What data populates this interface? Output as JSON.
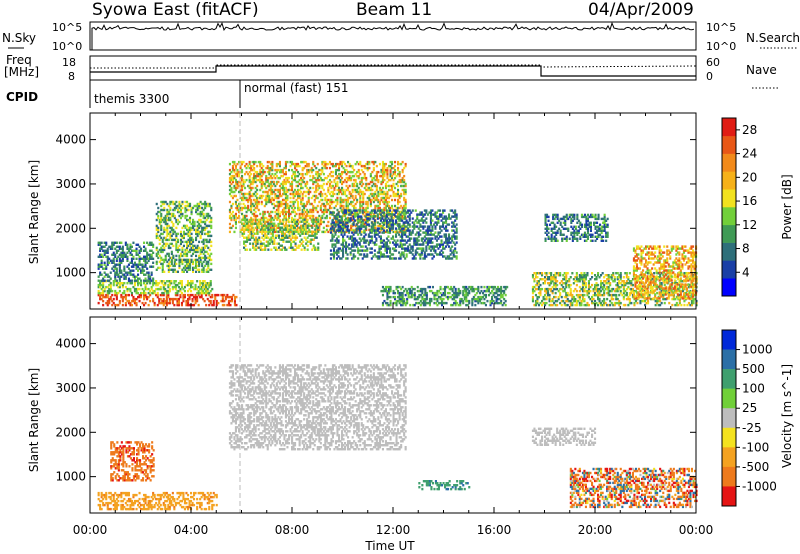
{
  "header": {
    "station": "Syowa East (fitACF)",
    "beam": "Beam 11",
    "date": "04/Apr/2009"
  },
  "colors": {
    "power_scale": [
      "#0000ff",
      "#1a3fa6",
      "#2e6f7a",
      "#3f9a55",
      "#72cf3a",
      "#f2e21f",
      "#f6b119",
      "#f28a1a",
      "#e85716",
      "#e01c14"
    ],
    "velocity_scale": [
      "#0028d9",
      "#2b6fa6",
      "#3f9f6e",
      "#70cf38",
      "#bdbdbd",
      "#f4e21f",
      "#f4a220",
      "#ee7a1c",
      "#e51414"
    ],
    "gate_dash": "#bbbbbb"
  },
  "panels": {
    "nsky": {
      "label": "N.Sky",
      "ticks": [
        "10^5",
        "10^0"
      ],
      "right_label": "N.Search",
      "right_ticks": [
        "10^5",
        "10^0"
      ]
    },
    "freq": {
      "label_top": "Freq",
      "label_bottom": "[MHz]",
      "ticks": [
        "18",
        "8"
      ],
      "right_label": "Nave",
      "right_ticks": [
        "60",
        "0"
      ]
    },
    "cpid": {
      "label": "CPID",
      "modes": [
        "themis 3300",
        "normal (fast) 151"
      ]
    }
  },
  "chart_data": [
    {
      "type": "heatmap",
      "title": "Power",
      "xlabel": "",
      "ylabel": "Slant Range [km]",
      "xlim": [
        0,
        24
      ],
      "ylim": [
        180,
        4600
      ],
      "yticks": [
        1000,
        2000,
        3000,
        4000
      ],
      "colorbar": {
        "label": "Power [dB]",
        "ticks": [
          4,
          8,
          12,
          16,
          20,
          24,
          28
        ],
        "range": [
          0,
          30
        ]
      },
      "regions": [
        {
          "t": [
            0.3,
            5.8
          ],
          "r": [
            250,
            520
          ],
          "value": 26,
          "spread": 4
        },
        {
          "t": [
            0.3,
            4.8
          ],
          "r": [
            520,
            800
          ],
          "value": 14,
          "spread": 4
        },
        {
          "t": [
            0.3,
            2.5
          ],
          "r": [
            800,
            1700
          ],
          "value": 8,
          "spread": 5
        },
        {
          "t": [
            2.6,
            4.8
          ],
          "r": [
            1000,
            2600
          ],
          "value": 12,
          "spread": 6
        },
        {
          "t": [
            5.5,
            12.5
          ],
          "r": [
            1900,
            3500
          ],
          "value": 18,
          "spread": 8
        },
        {
          "t": [
            6.0,
            9.0
          ],
          "r": [
            1500,
            2200
          ],
          "value": 14,
          "spread": 6
        },
        {
          "t": [
            9.5,
            14.5
          ],
          "r": [
            1300,
            2400
          ],
          "value": 8,
          "spread": 5
        },
        {
          "t": [
            11.5,
            16.5
          ],
          "r": [
            250,
            700
          ],
          "value": 10,
          "spread": 5
        },
        {
          "t": [
            17.5,
            24.0
          ],
          "r": [
            250,
            1000
          ],
          "value": 14,
          "spread": 7
        },
        {
          "t": [
            21.5,
            24.0
          ],
          "r": [
            400,
            1600
          ],
          "value": 20,
          "spread": 7
        },
        {
          "t": [
            18.0,
            20.5
          ],
          "r": [
            1700,
            2300
          ],
          "value": 8,
          "spread": 5
        }
      ]
    },
    {
      "type": "heatmap",
      "title": "Velocity",
      "xlabel": "Time UT",
      "ylabel": "Slant Range [km]",
      "xlim": [
        0,
        24
      ],
      "ylim": [
        180,
        4600
      ],
      "xticks": [
        "00:00",
        "04:00",
        "08:00",
        "12:00",
        "16:00",
        "20:00",
        "00:00"
      ],
      "yticks": [
        1000,
        2000,
        3000,
        4000
      ],
      "colorbar": {
        "label": "Velocity [m s^-1]",
        "ticks": [
          "1000",
          "500",
          "100",
          "25",
          "-25",
          "-100",
          "-500",
          "-1000"
        ]
      },
      "regions": [
        {
          "t": [
            0.3,
            5.0
          ],
          "r": [
            250,
            650
          ],
          "value": -120,
          "spread": 40
        },
        {
          "t": [
            0.8,
            2.5
          ],
          "r": [
            900,
            1800
          ],
          "value": -400,
          "spread": 150
        },
        {
          "t": [
            5.5,
            12.5
          ],
          "r": [
            1600,
            3500
          ],
          "value": 0,
          "spread": 15
        },
        {
          "t": [
            13.0,
            15.0
          ],
          "r": [
            700,
            900
          ],
          "value": 80,
          "spread": 30
        },
        {
          "t": [
            19.0,
            24.0
          ],
          "r": [
            300,
            1200
          ],
          "value": -200,
          "spread": 500
        },
        {
          "t": [
            17.5,
            20.0
          ],
          "r": [
            1700,
            2100
          ],
          "value": 0,
          "spread": 15
        }
      ]
    }
  ]
}
